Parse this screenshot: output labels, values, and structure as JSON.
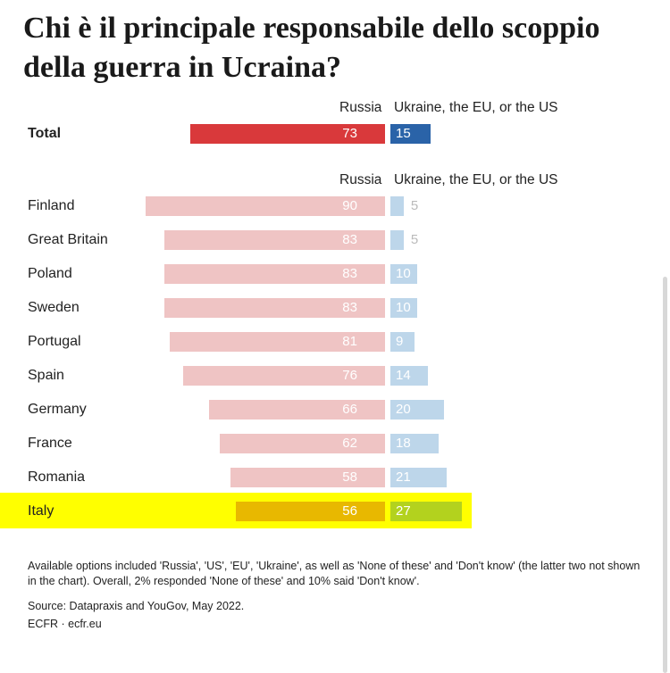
{
  "title": "Chi è il principale responsabile dello scoppio della guerra in Ucraina?",
  "column_headers": {
    "left": "Russia",
    "right": "Ukraine, the EU, or the US"
  },
  "colors": {
    "russia_total": "#d9393b",
    "other_total": "#2a63a8",
    "russia_country": "#efc4c4",
    "other_country": "#bdd6ea",
    "russia_highlight": "#e8b800",
    "other_highlight": "#b3d21e",
    "highlight": "#ffff00"
  },
  "chart_data": {
    "type": "bar",
    "title": "",
    "xlabel": "",
    "ylabel": "",
    "xlim": [
      0,
      100
    ],
    "categories": [
      "Total",
      "Finland",
      "Great Britain",
      "Poland",
      "Sweden",
      "Portugal",
      "Spain",
      "Germany",
      "France",
      "Romania",
      "Italy"
    ],
    "series": [
      {
        "name": "Russia",
        "values": [
          73,
          90,
          83,
          83,
          83,
          81,
          76,
          66,
          62,
          58,
          56
        ]
      },
      {
        "name": "Ukraine, the EU, or the US",
        "values": [
          15,
          5,
          5,
          10,
          10,
          9,
          14,
          20,
          18,
          21,
          27
        ]
      }
    ],
    "highlighted_category": "Italy"
  },
  "notes": {
    "options": "Available options included 'Russia', 'US', 'EU', 'Ukraine', as well as 'None of these' and 'Don't know' (the latter two not shown in the chart). Overall, 2% responded 'None of these' and 10% said 'Don't know'.",
    "source": "Source: Datapraxis and YouGov, May 2022.",
    "credit": "ECFR · ecfr.eu"
  }
}
